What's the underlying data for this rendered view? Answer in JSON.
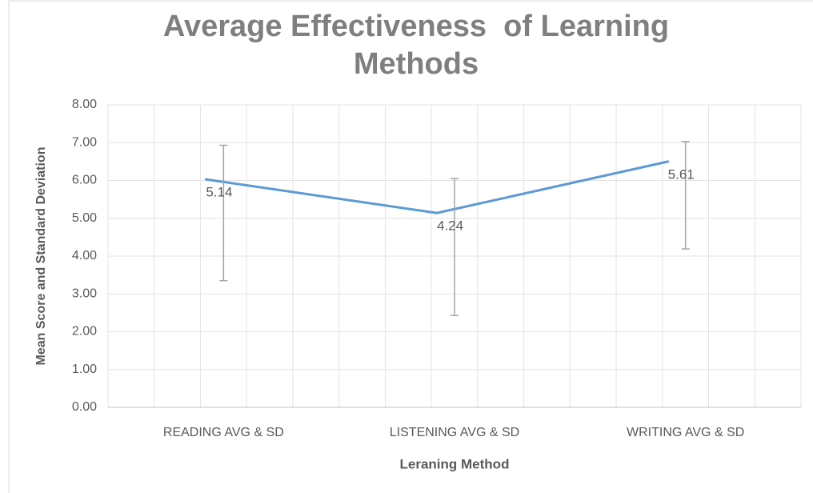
{
  "chart_data": {
    "type": "line",
    "title": "Average Effectiveness  of Learning Methods",
    "x_label": "Leraning Method",
    "y_label": "Mean Score and Standard Deviation",
    "categories": [
      "READING AVG & SD",
      "LISTENING AVG & SD",
      "WRITING  AVG & SD"
    ],
    "series": [
      {
        "color": "#5b9bd5",
        "values": [
          6.03,
          5.14,
          6.5
        ]
      },
      {
        "color": "#a5a5a5",
        "values": [
          5.14,
          4.24,
          5.61
        ],
        "errors": [
          1.79,
          1.81,
          1.42
        ],
        "value_labels": [
          "5.14",
          "4.24",
          "5.61"
        ]
      }
    ],
    "ylim": [
      0,
      8
    ],
    "yticks": [
      {
        "value": 0,
        "label": "0.00"
      },
      {
        "value": 1,
        "label": "1.00"
      },
      {
        "value": 2,
        "label": "2.00"
      },
      {
        "value": 3,
        "label": "3.00"
      },
      {
        "value": 4,
        "label": "4.00"
      },
      {
        "value": 5,
        "label": "5.00"
      },
      {
        "value": 6,
        "label": "6.00"
      },
      {
        "value": 7,
        "label": "7.00"
      },
      {
        "value": 8,
        "label": "8.00"
      }
    ],
    "grid": true
  }
}
